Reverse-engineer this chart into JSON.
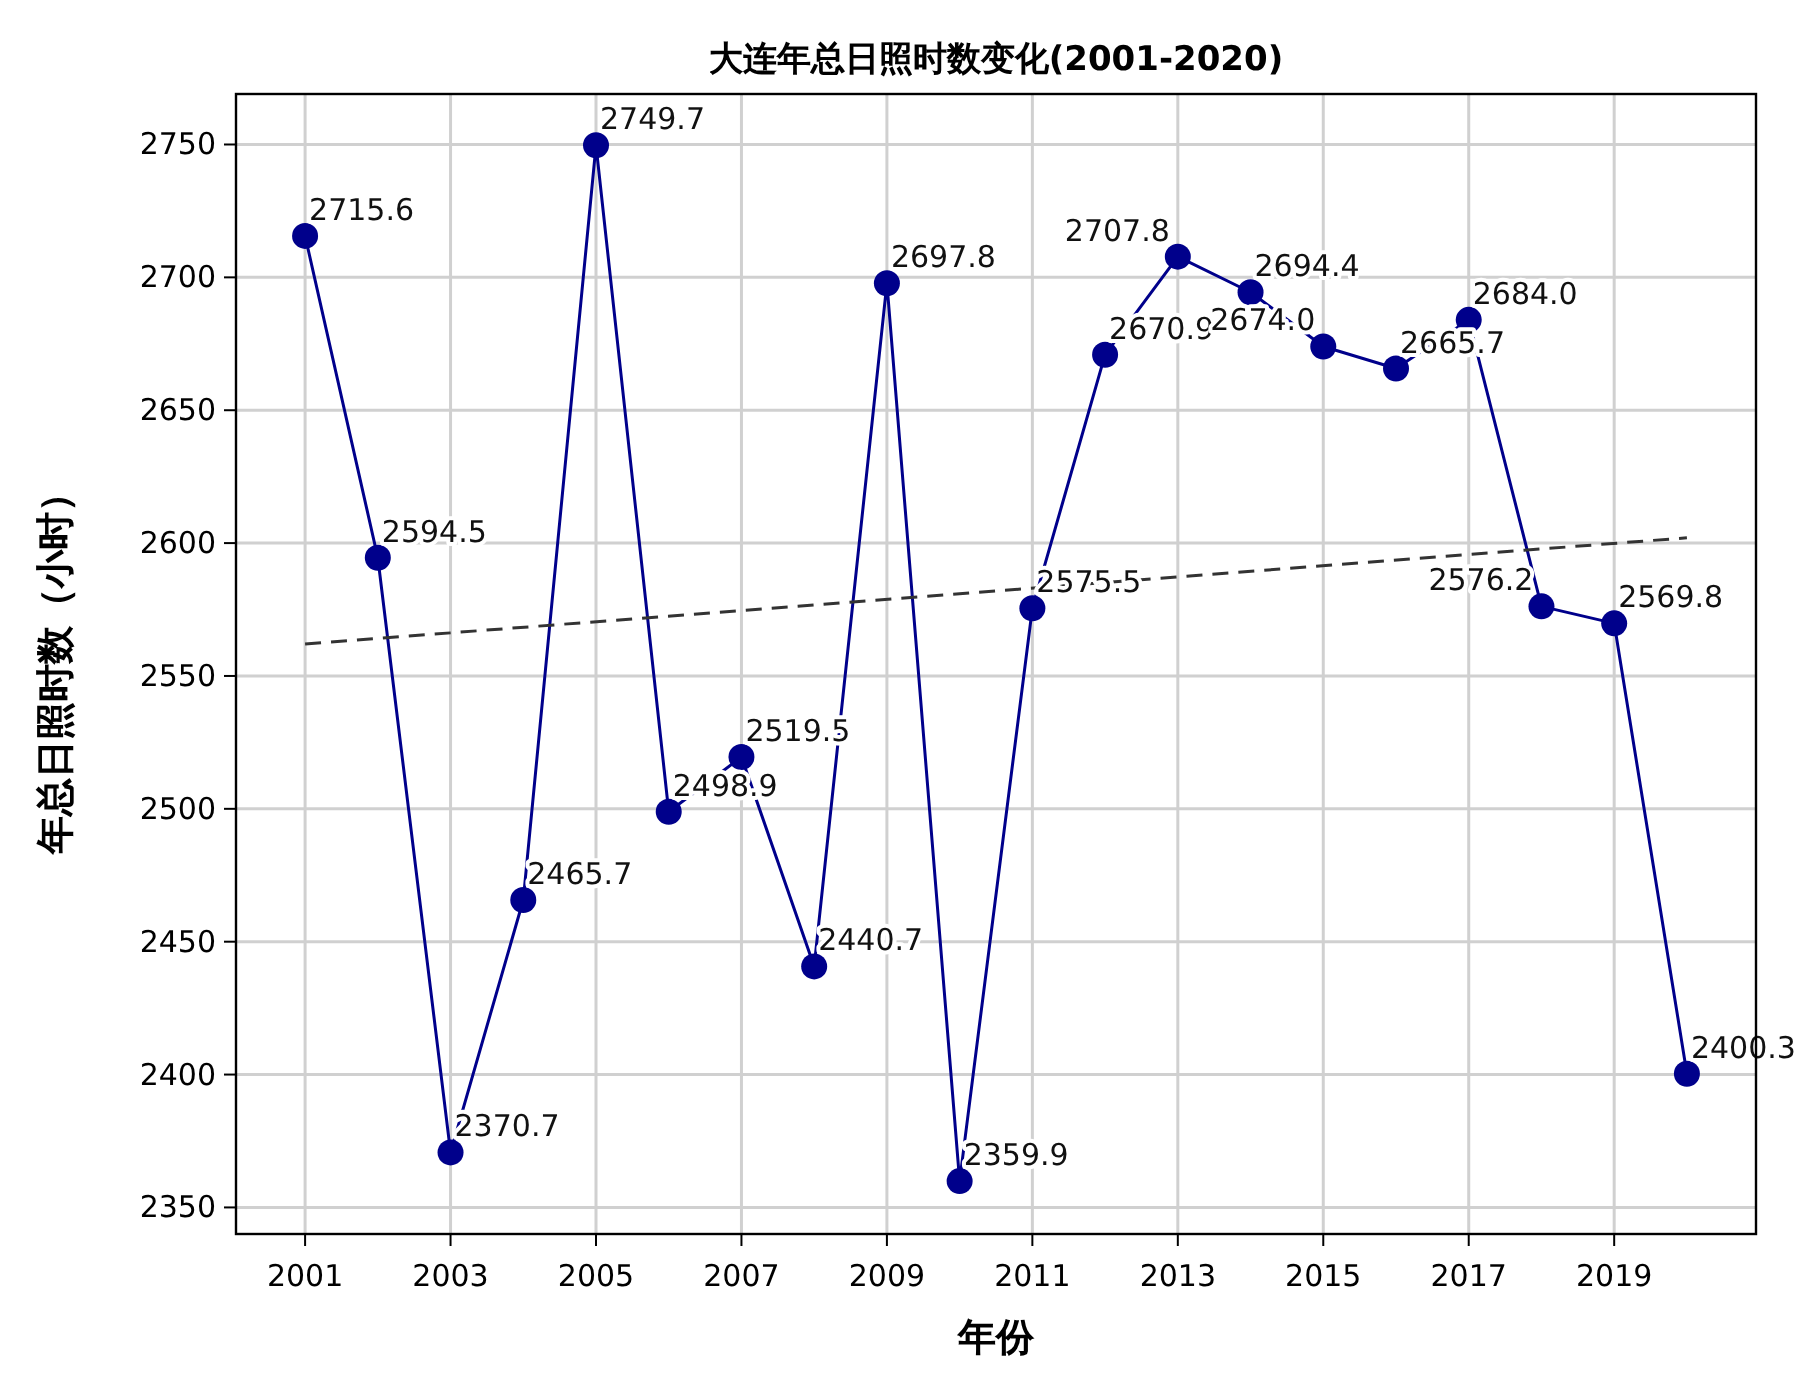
{
  "chart_data": {
    "type": "line",
    "title": "大连年总日照时数变化(2001-2020)",
    "xlabel": "年份",
    "ylabel": "年总日照时数（小时）",
    "x": [
      2001,
      2002,
      2003,
      2004,
      2005,
      2006,
      2007,
      2008,
      2009,
      2010,
      2011,
      2012,
      2013,
      2014,
      2015,
      2016,
      2017,
      2018,
      2019,
      2020
    ],
    "series": [
      {
        "color": "#00008b",
        "marker": "circle",
        "line_style": "solid",
        "values": [
          2715.6,
          2594.5,
          2370.7,
          2465.7,
          2749.7,
          2498.9,
          2519.5,
          2440.7,
          2697.8,
          2359.9,
          2575.5,
          2670.9,
          2707.8,
          2694.4,
          2674.0,
          2665.7,
          2684.0,
          2576.2,
          2569.8,
          2400.3
        ],
        "value_labels": [
          "2715.6",
          "2594.5",
          "2370.7",
          "2465.7",
          "2749.7",
          "2498.9",
          "2519.5",
          "2440.7",
          "2697.8",
          "2359.9",
          "2575.5",
          "2670.9",
          "2707.8",
          "2694.4",
          "2674.0",
          "2665.7",
          "2684.0",
          "2576.2",
          "2569.8",
          "2400.3"
        ]
      },
      {
        "color": "#333333",
        "marker": "none",
        "line_style": "dashed",
        "x": [
          2001,
          2020
        ],
        "values": [
          2562,
          2602
        ]
      }
    ],
    "xlim": [
      2000.05,
      2020.95
    ],
    "ylim": [
      2340,
      2769
    ],
    "xticks": [
      2001,
      2003,
      2005,
      2007,
      2009,
      2011,
      2013,
      2015,
      2017,
      2019
    ],
    "yticks": [
      2350,
      2400,
      2450,
      2500,
      2550,
      2600,
      2650,
      2700,
      2750
    ],
    "grid": true
  }
}
